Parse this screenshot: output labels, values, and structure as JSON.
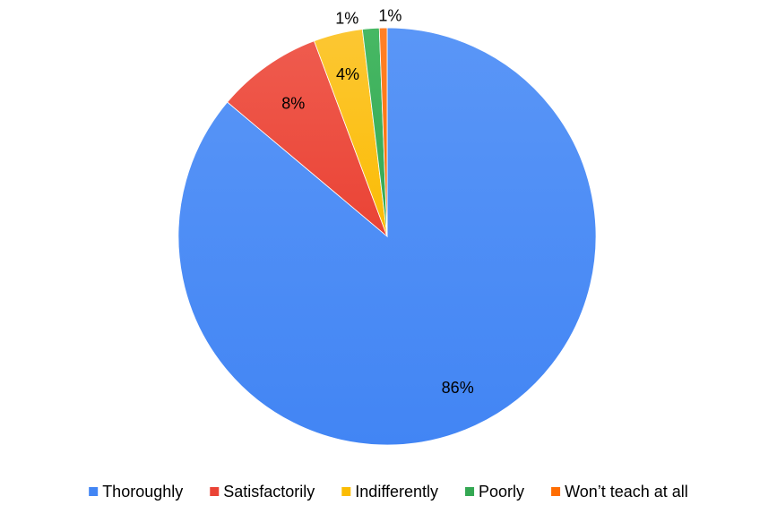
{
  "chart_data": {
    "type": "pie",
    "title": "",
    "legend_position": "bottom",
    "start_angle_deg": 0,
    "direction": "clockwise",
    "slices": [
      {
        "name": "Thoroughly",
        "value": 86.3,
        "label": "86%",
        "color": "#4285f4",
        "color_light": "#5a96f7"
      },
      {
        "name": "Satisfactorily",
        "value": 8.2,
        "label": "8%",
        "color": "#ea4335",
        "color_light": "#ef5b4e"
      },
      {
        "name": "Indifferently",
        "value": 3.8,
        "label": "4%",
        "color": "#fbbc04",
        "color_light": "#fcc733"
      },
      {
        "name": "Poorly",
        "value": 1.3,
        "label": "1%",
        "color": "#34a853",
        "color_light": "#47b864"
      },
      {
        "name": "Won’t teach at all",
        "value": 0.6,
        "label": "1%",
        "color": "#ff6d01",
        "color_light": "#ff8128"
      }
    ]
  }
}
